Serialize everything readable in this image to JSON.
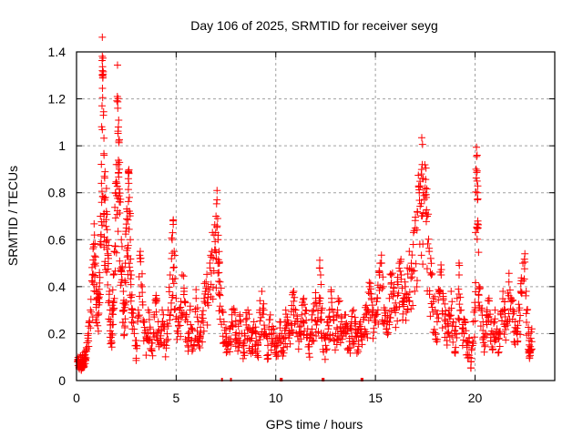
{
  "chart_data": {
    "type": "scatter",
    "title": "Day 106 of 2025, SRMTID for receiver seyg",
    "xlabel": "GPS time / hours",
    "ylabel": "SRMTID / TECUs",
    "xlim": [
      0,
      24
    ],
    "ylim": [
      0,
      1.4
    ],
    "xticks": [
      0,
      5,
      10,
      15,
      20
    ],
    "xtick_labels": [
      "0",
      "5",
      "10",
      "15",
      "20"
    ],
    "yticks": [
      0,
      0.2,
      0.4,
      0.6,
      0.8,
      1.0,
      1.2,
      1.4
    ],
    "ytick_labels": [
      "0",
      "0.2",
      "0.4",
      "0.6",
      "0.8",
      "1",
      "1.2",
      "1.4"
    ],
    "grid": true,
    "legend": "none",
    "marker": "plus",
    "series": [
      {
        "name": "SRMTID",
        "color": "#ff0000",
        "points": [
          [
            0.05,
            0.08
          ],
          [
            0.1,
            0.09
          ],
          [
            0.15,
            0.07
          ],
          [
            0.2,
            0.1
          ],
          [
            0.25,
            0.06
          ],
          [
            0.3,
            0.11
          ],
          [
            0.35,
            0.08
          ],
          [
            0.4,
            0.12
          ],
          [
            0.45,
            0.09
          ],
          [
            0.5,
            0.14
          ],
          [
            0.6,
            0.2
          ],
          [
            0.7,
            0.3
          ],
          [
            0.8,
            0.45
          ],
          [
            0.85,
            0.58
          ],
          [
            0.9,
            0.62
          ],
          [
            0.95,
            0.5
          ],
          [
            1.0,
            0.4
          ],
          [
            1.05,
            0.35
          ],
          [
            1.1,
            0.28
          ],
          [
            1.15,
            0.46
          ],
          [
            1.2,
            0.7
          ],
          [
            1.25,
            0.84
          ],
          [
            1.28,
            1.17
          ],
          [
            1.3,
            1.32
          ],
          [
            1.32,
            1.29
          ],
          [
            1.35,
            1.13
          ],
          [
            1.38,
            0.96
          ],
          [
            1.4,
            0.87
          ],
          [
            1.45,
            0.78
          ],
          [
            1.5,
            0.72
          ],
          [
            1.55,
            0.6
          ],
          [
            1.6,
            0.52
          ],
          [
            1.65,
            0.38
          ],
          [
            1.7,
            0.25
          ],
          [
            1.75,
            0.2
          ],
          [
            1.8,
            0.3
          ],
          [
            1.85,
            0.45
          ],
          [
            1.9,
            0.55
          ],
          [
            1.95,
            0.8
          ],
          [
            2.0,
            0.92
          ],
          [
            2.05,
            1.21
          ],
          [
            2.07,
            1.16
          ],
          [
            2.1,
            1.08
          ],
          [
            2.12,
            1.02
          ],
          [
            2.15,
            0.9
          ],
          [
            2.2,
            0.76
          ],
          [
            2.25,
            0.6
          ],
          [
            2.3,
            0.48
          ],
          [
            2.35,
            0.38
          ],
          [
            2.4,
            0.3
          ],
          [
            2.45,
            0.5
          ],
          [
            2.5,
            0.65
          ],
          [
            2.55,
            0.72
          ],
          [
            2.6,
            0.86
          ],
          [
            2.62,
            0.84
          ],
          [
            2.65,
            0.78
          ],
          [
            2.7,
            0.6
          ],
          [
            2.75,
            0.45
          ],
          [
            2.8,
            0.3
          ],
          [
            2.9,
            0.2
          ],
          [
            3.0,
            0.15
          ],
          [
            3.1,
            0.3
          ],
          [
            3.2,
            0.55
          ],
          [
            3.3,
            0.4
          ],
          [
            3.4,
            0.25
          ],
          [
            3.5,
            0.18
          ],
          [
            3.6,
            0.3
          ],
          [
            3.7,
            0.22
          ],
          [
            3.8,
            0.16
          ],
          [
            3.9,
            0.28
          ],
          [
            4.0,
            0.35
          ],
          [
            4.1,
            0.25
          ],
          [
            4.2,
            0.18
          ],
          [
            4.3,
            0.3
          ],
          [
            4.4,
            0.22
          ],
          [
            4.5,
            0.15
          ],
          [
            4.6,
            0.3
          ],
          [
            4.7,
            0.45
          ],
          [
            4.8,
            0.6
          ],
          [
            4.85,
            0.68
          ],
          [
            4.9,
            0.55
          ],
          [
            5.0,
            0.35
          ],
          [
            5.1,
            0.25
          ],
          [
            5.2,
            0.3
          ],
          [
            5.3,
            0.45
          ],
          [
            5.4,
            0.38
          ],
          [
            5.5,
            0.28
          ],
          [
            5.6,
            0.2
          ],
          [
            5.7,
            0.3
          ],
          [
            5.8,
            0.22
          ],
          [
            5.9,
            0.15
          ],
          [
            6.0,
            0.35
          ],
          [
            6.1,
            0.25
          ],
          [
            6.2,
            0.18
          ],
          [
            6.3,
            0.28
          ],
          [
            6.4,
            0.35
          ],
          [
            6.5,
            0.42
          ],
          [
            6.6,
            0.4
          ],
          [
            6.7,
            0.48
          ],
          [
            6.8,
            0.55
          ],
          [
            6.9,
            0.62
          ],
          [
            7.0,
            0.7
          ],
          [
            7.05,
            0.77
          ],
          [
            7.1,
            0.6
          ],
          [
            7.15,
            0.5
          ],
          [
            7.2,
            0.42
          ],
          [
            7.3,
            0.3
          ],
          [
            7.4,
            0.25
          ],
          [
            7.5,
            0.2
          ],
          [
            7.6,
            0.15
          ],
          [
            7.7,
            0.22
          ],
          [
            7.8,
            0.28
          ],
          [
            7.9,
            0.3
          ],
          [
            8.0,
            0.24
          ],
          [
            8.1,
            0.18
          ],
          [
            8.2,
            0.28
          ],
          [
            8.3,
            0.2
          ],
          [
            8.4,
            0.15
          ],
          [
            8.5,
            0.26
          ],
          [
            8.6,
            0.3
          ],
          [
            8.7,
            0.22
          ],
          [
            8.8,
            0.18
          ],
          [
            8.9,
            0.25
          ],
          [
            9.0,
            0.2
          ],
          [
            9.1,
            0.15
          ],
          [
            9.2,
            0.3
          ],
          [
            9.3,
            0.38
          ],
          [
            9.4,
            0.3
          ],
          [
            9.5,
            0.2
          ],
          [
            9.6,
            0.15
          ],
          [
            9.7,
            0.26
          ],
          [
            9.8,
            0.2
          ],
          [
            9.9,
            0.22
          ],
          [
            10.0,
            0.18
          ],
          [
            10.1,
            0.15
          ],
          [
            10.2,
            0.25
          ],
          [
            10.3,
            0.2
          ],
          [
            10.4,
            0.18
          ],
          [
            10.5,
            0.3
          ],
          [
            10.6,
            0.24
          ],
          [
            10.7,
            0.2
          ],
          [
            10.8,
            0.32
          ],
          [
            10.9,
            0.38
          ],
          [
            11.0,
            0.3
          ],
          [
            11.1,
            0.25
          ],
          [
            11.2,
            0.2
          ],
          [
            11.3,
            0.28
          ],
          [
            11.4,
            0.35
          ],
          [
            11.5,
            0.3
          ],
          [
            11.6,
            0.22
          ],
          [
            11.7,
            0.18
          ],
          [
            11.8,
            0.26
          ],
          [
            11.9,
            0.3
          ],
          [
            12.0,
            0.35
          ],
          [
            12.1,
            0.25
          ],
          [
            12.2,
            0.48
          ],
          [
            12.25,
            0.45
          ],
          [
            12.3,
            0.3
          ],
          [
            12.4,
            0.2
          ],
          [
            12.5,
            0.15
          ],
          [
            12.6,
            0.25
          ],
          [
            12.7,
            0.3
          ],
          [
            12.8,
            0.35
          ],
          [
            12.9,
            0.26
          ],
          [
            13.0,
            0.2
          ],
          [
            13.1,
            0.3
          ],
          [
            13.2,
            0.34
          ],
          [
            13.3,
            0.25
          ],
          [
            13.4,
            0.2
          ],
          [
            13.5,
            0.28
          ],
          [
            13.6,
            0.22
          ],
          [
            13.7,
            0.18
          ],
          [
            13.8,
            0.25
          ],
          [
            13.9,
            0.3
          ],
          [
            14.0,
            0.22
          ],
          [
            14.1,
            0.2
          ],
          [
            14.2,
            0.24
          ],
          [
            14.3,
            0.22
          ],
          [
            14.4,
            0.26
          ],
          [
            14.5,
            0.28
          ],
          [
            14.6,
            0.3
          ],
          [
            14.7,
            0.4
          ],
          [
            14.8,
            0.35
          ],
          [
            14.9,
            0.3
          ],
          [
            15.0,
            0.28
          ],
          [
            15.1,
            0.35
          ],
          [
            15.2,
            0.45
          ],
          [
            15.3,
            0.5
          ],
          [
            15.4,
            0.4
          ],
          [
            15.5,
            0.3
          ],
          [
            15.6,
            0.25
          ],
          [
            15.7,
            0.35
          ],
          [
            15.8,
            0.45
          ],
          [
            15.9,
            0.38
          ],
          [
            16.0,
            0.3
          ],
          [
            16.1,
            0.42
          ],
          [
            16.2,
            0.5
          ],
          [
            16.3,
            0.45
          ],
          [
            16.4,
            0.35
          ],
          [
            16.5,
            0.4
          ],
          [
            16.6,
            0.48
          ],
          [
            16.7,
            0.55
          ],
          [
            16.8,
            0.5
          ],
          [
            16.9,
            0.58
          ],
          [
            17.0,
            0.65
          ],
          [
            17.1,
            0.72
          ],
          [
            17.2,
            0.8
          ],
          [
            17.3,
            0.88
          ],
          [
            17.35,
            0.92
          ],
          [
            17.4,
            0.86
          ],
          [
            17.5,
            0.82
          ],
          [
            17.55,
            0.78
          ],
          [
            17.6,
            0.7
          ],
          [
            17.7,
            0.55
          ],
          [
            17.8,
            0.45
          ],
          [
            17.9,
            0.35
          ],
          [
            18.0,
            0.3
          ],
          [
            18.1,
            0.25
          ],
          [
            18.2,
            0.38
          ],
          [
            18.3,
            0.45
          ],
          [
            18.4,
            0.35
          ],
          [
            18.5,
            0.28
          ],
          [
            18.6,
            0.2
          ],
          [
            18.7,
            0.3
          ],
          [
            18.8,
            0.38
          ],
          [
            18.9,
            0.25
          ],
          [
            19.0,
            0.2
          ],
          [
            19.1,
            0.35
          ],
          [
            19.2,
            0.45
          ],
          [
            19.3,
            0.3
          ],
          [
            19.4,
            0.22
          ],
          [
            19.5,
            0.25
          ],
          [
            19.6,
            0.15
          ],
          [
            19.7,
            0.18
          ],
          [
            19.8,
            0.08
          ],
          [
            19.9,
            0.25
          ],
          [
            20.0,
            0.3
          ],
          [
            20.05,
            0.9
          ],
          [
            20.1,
            0.85
          ],
          [
            20.12,
            0.8
          ],
          [
            20.15,
            0.65
          ],
          [
            20.2,
            0.4
          ],
          [
            20.3,
            0.3
          ],
          [
            20.4,
            0.25
          ],
          [
            20.5,
            0.2
          ],
          [
            20.6,
            0.28
          ],
          [
            20.7,
            0.35
          ],
          [
            20.8,
            0.25
          ],
          [
            20.9,
            0.2
          ],
          [
            21.0,
            0.3
          ],
          [
            21.1,
            0.22
          ],
          [
            21.2,
            0.18
          ],
          [
            21.3,
            0.28
          ],
          [
            21.4,
            0.38
          ],
          [
            21.5,
            0.3
          ],
          [
            21.6,
            0.25
          ],
          [
            21.7,
            0.42
          ],
          [
            21.8,
            0.35
          ],
          [
            21.9,
            0.3
          ],
          [
            22.0,
            0.25
          ],
          [
            22.1,
            0.2
          ],
          [
            22.2,
            0.3
          ],
          [
            22.3,
            0.38
          ],
          [
            22.4,
            0.5
          ],
          [
            22.5,
            0.54
          ],
          [
            22.6,
            0.3
          ],
          [
            22.7,
            0.2
          ],
          [
            22.75,
            0.12
          ],
          [
            22.8,
            0.18
          ],
          [
            22.85,
            0.22
          ]
        ]
      }
    ],
    "zero_markers_x": [
      7.3,
      7.75,
      10.25,
      10.3,
      12.35,
      12.4,
      14.3,
      14.35
    ]
  }
}
